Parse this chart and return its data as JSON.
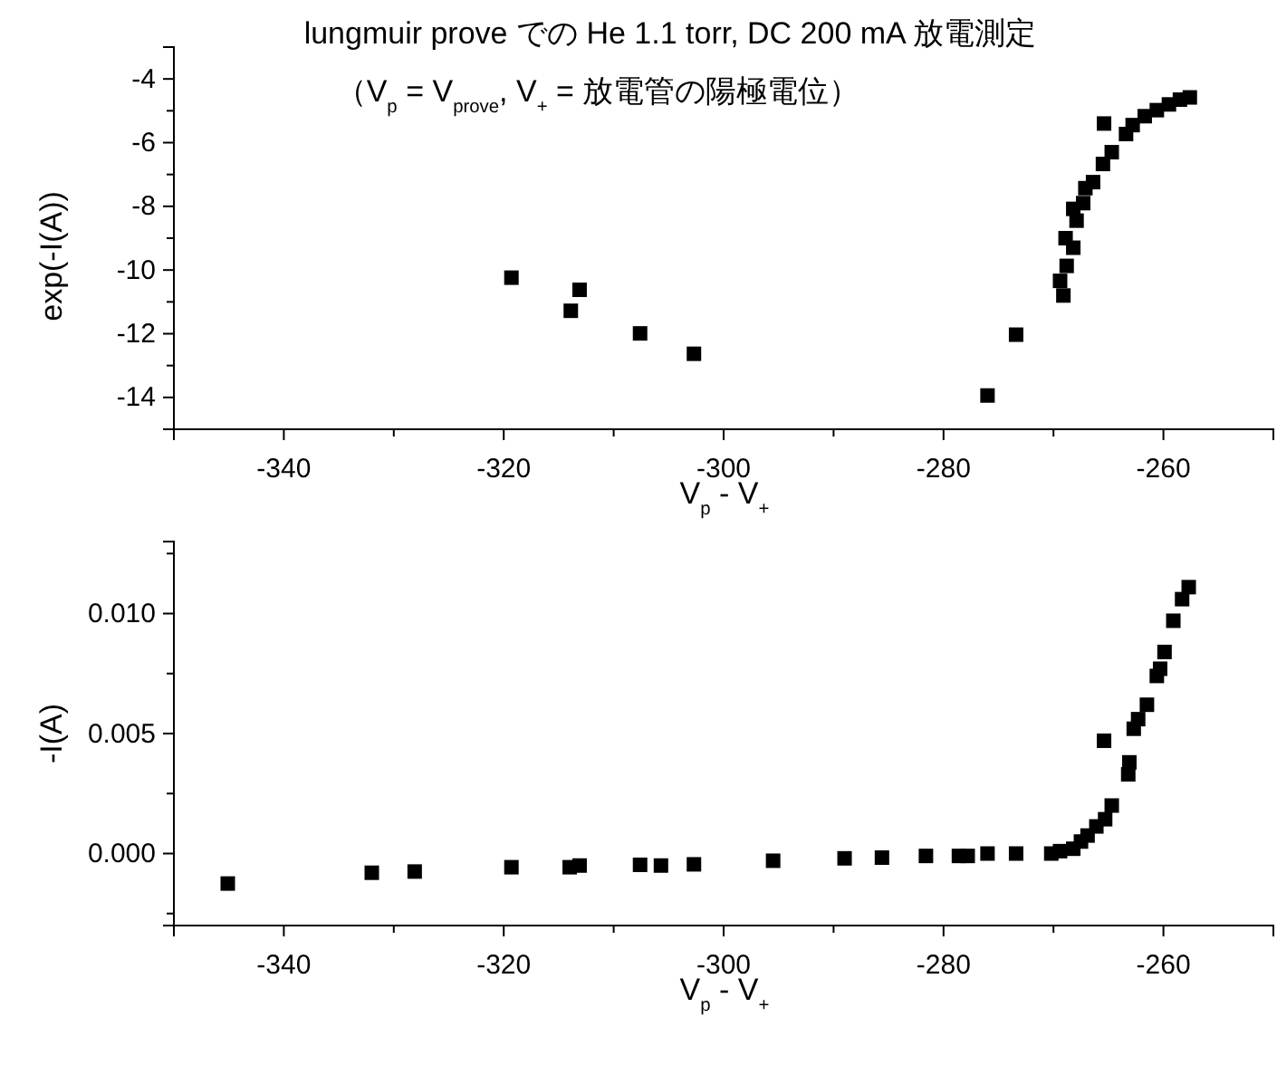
{
  "chart_data": [
    {
      "type": "scatter",
      "title": "lungmuir prove での He 1.1 torr, DC 200 mA 放電測定",
      "subtitle": "（V$_{p}$ = V$_{prove}$, V$_{+}$ = 放電管の陽極電位）",
      "xlabel": "V$_{p}$ - V$_{+}$",
      "ylabel": "exp(-I(A))",
      "marker": "square",
      "grid": false,
      "xlim": [
        -350,
        -250
      ],
      "xticks": [
        {
          "value": -350,
          "label": null
        },
        -340,
        {
          "value": -330,
          "label": null
        },
        -320,
        {
          "value": -310,
          "label": null
        },
        -300,
        {
          "value": -290,
          "label": null
        },
        -280,
        {
          "value": -270,
          "label": null
        },
        -260,
        {
          "value": -250,
          "label": null
        }
      ],
      "ylim": [
        -15,
        -3
      ],
      "yticks": [
        {
          "value": -15,
          "label": null
        },
        -14,
        {
          "value": -13,
          "label": null
        },
        -12,
        {
          "value": -11,
          "label": null
        },
        -10,
        {
          "value": -9,
          "label": null
        },
        -8,
        {
          "value": -7,
          "label": null
        },
        -6,
        {
          "value": -5,
          "label": null
        },
        -4,
        {
          "value": -3,
          "label": null
        }
      ],
      "series": [
        {
          "color": "#000000",
          "x": [
            -319.3,
            -313.9,
            -313.1,
            -307.6,
            -302.7,
            -276.0,
            -273.4,
            -269.6,
            -269.1,
            -269.4,
            -268.8,
            -268.2,
            -268.9,
            -267.9,
            -268.2,
            -267.3,
            -267.1,
            -266.4,
            -265.5,
            -264.7,
            -265.4,
            -263.4,
            -262.8,
            -261.7,
            -260.6,
            -259.5,
            -258.5,
            -257.6
          ],
          "values": [
            -10.24,
            -11.28,
            -10.62,
            -11.99,
            -12.63,
            -13.94,
            -12.03,
            null,
            -10.8,
            -10.34,
            -9.87,
            -9.3,
            -9.0,
            -8.45,
            -8.08,
            -7.9,
            -7.43,
            -7.24,
            -6.67,
            -6.3,
            -5.4,
            -5.73,
            -5.45,
            -5.17,
            -4.98,
            -4.8,
            -4.65,
            -4.58
          ]
        }
      ]
    },
    {
      "type": "scatter",
      "xlabel": "V$_{p}$ - V$_{+}$",
      "ylabel": "-I(A)",
      "marker": "square",
      "grid": false,
      "xlim": [
        -350,
        -250
      ],
      "xticks": [
        {
          "value": -350,
          "label": null
        },
        -340,
        {
          "value": -330,
          "label": null
        },
        -320,
        {
          "value": -310,
          "label": null
        },
        -300,
        {
          "value": -290,
          "label": null
        },
        -280,
        {
          "value": -270,
          "label": null
        },
        -260,
        {
          "value": -250,
          "label": null
        }
      ],
      "ylim": [
        -0.003,
        0.013
      ],
      "yticks": [
        {
          "value": -0.0025,
          "label": null
        },
        {
          "value": 0,
          "label": "0.000"
        },
        {
          "value": 0.0025,
          "label": null
        },
        {
          "value": 0.005,
          "label": "0.005"
        },
        {
          "value": 0.0075,
          "label": null
        },
        {
          "value": 0.01,
          "label": "0.010"
        },
        {
          "value": 0.0125,
          "label": null
        }
      ],
      "series": [
        {
          "color": "#000000",
          "x": [
            -345.1,
            -332.0,
            -328.1,
            -319.3,
            -314.0,
            -313.1,
            -307.6,
            -305.7,
            -302.7,
            -295.5,
            -289.0,
            -285.6,
            -281.6,
            -278.6,
            -277.8,
            -276.0,
            -273.4,
            -270.2,
            -269.4,
            -268.2,
            -267.5,
            -266.9,
            -266.1,
            -265.3,
            -264.7,
            -265.4,
            -263.2,
            -263.1,
            -262.7,
            -262.3,
            -261.5,
            -260.6,
            -260.3,
            -259.9,
            -259.1,
            -258.3,
            -257.7
          ],
          "values": [
            -0.00125,
            -0.0008,
            -0.00075,
            -0.00057,
            -0.00057,
            -0.0005,
            -0.00047,
            -0.0005,
            -0.00045,
            -0.0003,
            -0.0002,
            -0.00017,
            -0.0001,
            -0.0001,
            -0.0001,
            0,
            0,
            0,
            0.0001,
            0.0002,
            0.0005,
            0.00075,
            0.00113,
            0.00143,
            0.002,
            0.0047,
            0.0033,
            0.0038,
            0.0052,
            0.0056,
            0.0062,
            0.0074,
            0.0077,
            0.0084,
            0.0097,
            0.0106,
            0.0111
          ]
        }
      ]
    }
  ]
}
